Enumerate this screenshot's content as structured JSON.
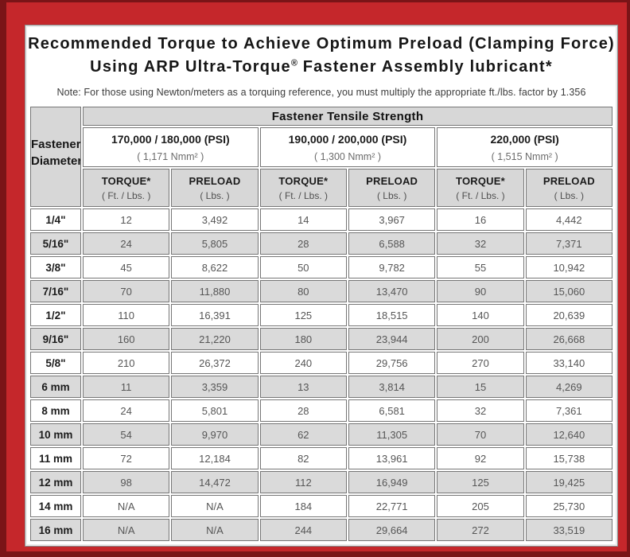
{
  "header": {
    "title_line1": "Recommended Torque to Achieve Optimum Preload (Clamping Force)",
    "title_line2_pre": "Using ARP Ultra-Torque",
    "title_line2_sup": "®",
    "title_line2_post": " Fastener Assembly lubricant*",
    "note": "Note: For those using Newton/meters as a torquing reference, you must multiply the appropriate ft./lbs. factor by 1.356"
  },
  "colors": {
    "frame_red": "#c5272b",
    "frame_dark_red": "#7a1417",
    "header_gray": "#d7d7d7",
    "row_shade_gray": "#dadada",
    "cell_border": "#767676",
    "value_text": "#565656"
  },
  "table": {
    "diameter_header_line1": "Fastener",
    "diameter_header_line2": "Diameter",
    "tensile_header": "Fastener Tensile Strength",
    "strength_groups": [
      {
        "psi": "170,000 / 180,000 (PSI)",
        "nmm": "( 1,171 Nmm² )"
      },
      {
        "psi": "190,000 / 200,000 (PSI)",
        "nmm": "( 1,300 Nmm² )"
      },
      {
        "psi": "220,000 (PSI)",
        "nmm": "( 1,515 Nmm² )"
      }
    ],
    "sub_headers": {
      "torque_label": "TORQUE*",
      "torque_unit": "( Ft. / Lbs. )",
      "preload_label": "PRELOAD",
      "preload_unit": "( Lbs. )"
    },
    "rows": [
      {
        "diameter": "1/4\"",
        "values": [
          "12",
          "3,492",
          "14",
          "3,967",
          "16",
          "4,442"
        ]
      },
      {
        "diameter": "5/16\"",
        "values": [
          "24",
          "5,805",
          "28",
          "6,588",
          "32",
          "7,371"
        ]
      },
      {
        "diameter": "3/8\"",
        "values": [
          "45",
          "8,622",
          "50",
          "9,782",
          "55",
          "10,942"
        ]
      },
      {
        "diameter": "7/16\"",
        "values": [
          "70",
          "11,880",
          "80",
          "13,470",
          "90",
          "15,060"
        ]
      },
      {
        "diameter": "1/2\"",
        "values": [
          "110",
          "16,391",
          "125",
          "18,515",
          "140",
          "20,639"
        ]
      },
      {
        "diameter": "9/16\"",
        "values": [
          "160",
          "21,220",
          "180",
          "23,944",
          "200",
          "26,668"
        ]
      },
      {
        "diameter": "5/8\"",
        "values": [
          "210",
          "26,372",
          "240",
          "29,756",
          "270",
          "33,140"
        ]
      },
      {
        "diameter": "6 mm",
        "values": [
          "11",
          "3,359",
          "13",
          "3,814",
          "15",
          "4,269"
        ]
      },
      {
        "diameter": "8 mm",
        "values": [
          "24",
          "5,801",
          "28",
          "6,581",
          "32",
          "7,361"
        ]
      },
      {
        "diameter": "10 mm",
        "values": [
          "54",
          "9,970",
          "62",
          "11,305",
          "70",
          "12,640"
        ]
      },
      {
        "diameter": "11 mm",
        "values": [
          "72",
          "12,184",
          "82",
          "13,961",
          "92",
          "15,738"
        ]
      },
      {
        "diameter": "12 mm",
        "values": [
          "98",
          "14,472",
          "112",
          "16,949",
          "125",
          "19,425"
        ]
      },
      {
        "diameter": "14 mm",
        "values": [
          "N/A",
          "N/A",
          "184",
          "22,771",
          "205",
          "25,730"
        ]
      },
      {
        "diameter": "16 mm",
        "values": [
          "N/A",
          "N/A",
          "244",
          "29,664",
          "272",
          "33,519"
        ]
      }
    ]
  }
}
